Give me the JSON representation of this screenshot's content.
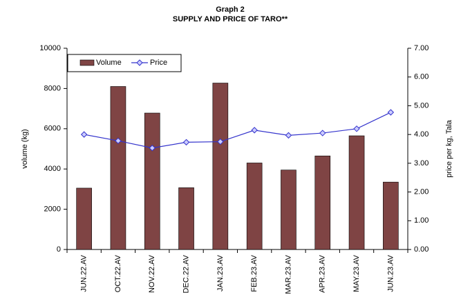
{
  "chart_data": {
    "type": "bar+line",
    "title": "Graph 2",
    "subtitle": "SUPPLY AND PRICE OF TARO**",
    "ylabel": "volume (kg)",
    "y2label": "price per kg, Tala",
    "categories": [
      "JUN.22.AV",
      "OCT.22.AV",
      "NOV.22.AV",
      "DEC.22.AV",
      "JAN.23.AV",
      "FEB.23.AV",
      "MAR.23.AV",
      "APR.23.AV",
      "MAY.23.AV",
      "JUN.23.AV"
    ],
    "series": [
      {
        "name": "Volume",
        "type": "bar",
        "color": "#7f4444",
        "values": [
          3050,
          8100,
          6780,
          3070,
          8270,
          4300,
          3950,
          4650,
          5650,
          3350
        ]
      },
      {
        "name": "Price",
        "type": "line",
        "axis": "y2",
        "color": "#3333cc",
        "values": [
          4.0,
          3.78,
          3.53,
          3.73,
          3.75,
          4.15,
          3.97,
          4.05,
          4.2,
          4.77
        ]
      }
    ],
    "ylim": [
      0,
      10000
    ],
    "yticks": [
      0,
      2000,
      4000,
      6000,
      8000,
      10000
    ],
    "y2lim": [
      0,
      7
    ],
    "y2ticks": [
      {
        "value": 0,
        "label": "0.00"
      },
      {
        "value": 1,
        "label": "1.00"
      },
      {
        "value": 2,
        "label": "2.00"
      },
      {
        "value": 3,
        "label": "3.00"
      },
      {
        "value": 4,
        "label": "4.00"
      },
      {
        "value": 5,
        "label": "5.00"
      },
      {
        "value": 6,
        "label": "6.00"
      },
      {
        "value": 7,
        "label": "7.00"
      }
    ],
    "legend": "top-left"
  }
}
